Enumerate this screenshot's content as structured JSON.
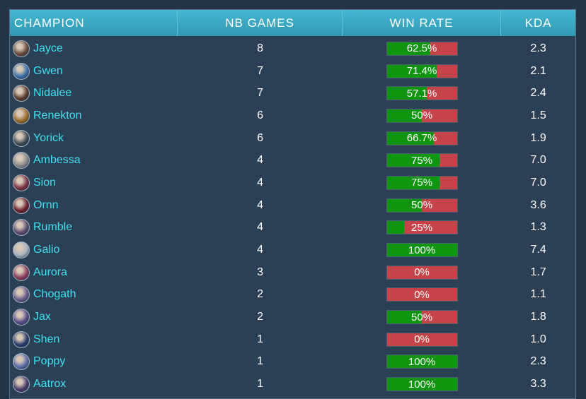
{
  "header": {
    "champion": "CHAMPION",
    "games": "NB GAMES",
    "winrate": "WIN RATE",
    "kda": "KDA"
  },
  "colors": {
    "header_bg": "#3aa9c4",
    "panel_bg": "#2b3f55",
    "name_color": "#3fe0f0",
    "win_color": "#0f950f",
    "loss_color": "#c4444a"
  },
  "rows": [
    {
      "name": "Jayce",
      "games": "8",
      "winrate_label": "62.5%",
      "winrate": 62.5,
      "kda": "2.3",
      "icon": "jayce-portrait-icon",
      "icon_color": "#6a4a3c"
    },
    {
      "name": "Gwen",
      "games": "7",
      "winrate_label": "71.4%",
      "winrate": 71.4,
      "kda": "2.1",
      "icon": "gwen-portrait-icon",
      "icon_color": "#3b6fa8"
    },
    {
      "name": "Nidalee",
      "games": "7",
      "winrate_label": "57.1%",
      "winrate": 57.1,
      "kda": "2.4",
      "icon": "nidalee-portrait-icon",
      "icon_color": "#5b3a2c"
    },
    {
      "name": "Renekton",
      "games": "6",
      "winrate_label": "50%",
      "winrate": 50,
      "kda": "1.5",
      "icon": "renekton-portrait-icon",
      "icon_color": "#9a6a2a"
    },
    {
      "name": "Yorick",
      "games": "6",
      "winrate_label": "66.7%",
      "winrate": 66.7,
      "kda": "1.9",
      "icon": "yorick-portrait-icon",
      "icon_color": "#3e4a55"
    },
    {
      "name": "Ambessa",
      "games": "4",
      "winrate_label": "75%",
      "winrate": 75,
      "kda": "7.0",
      "icon": "ambessa-portrait-icon",
      "icon_color": "#8a8a8a"
    },
    {
      "name": "Sion",
      "games": "4",
      "winrate_label": "75%",
      "winrate": 75,
      "kda": "7.0",
      "icon": "sion-portrait-icon",
      "icon_color": "#7a3040"
    },
    {
      "name": "Ornn",
      "games": "4",
      "winrate_label": "50%",
      "winrate": 50,
      "kda": "3.6",
      "icon": "ornn-portrait-icon",
      "icon_color": "#6a1f2a"
    },
    {
      "name": "Rumble",
      "games": "4",
      "winrate_label": "25%",
      "winrate": 25,
      "kda": "1.3",
      "icon": "rumble-portrait-icon",
      "icon_color": "#5a4a6a"
    },
    {
      "name": "Galio",
      "games": "4",
      "winrate_label": "100%",
      "winrate": 100,
      "kda": "7.4",
      "icon": "galio-portrait-icon",
      "icon_color": "#a7b2be"
    },
    {
      "name": "Aurora",
      "games": "3",
      "winrate_label": "0%",
      "winrate": 0,
      "kda": "1.7",
      "icon": "aurora-portrait-icon",
      "icon_color": "#8a3a5a"
    },
    {
      "name": "Chogath",
      "games": "2",
      "winrate_label": "0%",
      "winrate": 0,
      "kda": "1.1",
      "icon": "chogath-portrait-icon",
      "icon_color": "#6a5a8a"
    },
    {
      "name": "Jax",
      "games": "2",
      "winrate_label": "50%",
      "winrate": 50,
      "kda": "1.8",
      "icon": "jax-portrait-icon",
      "icon_color": "#5a4a8a"
    },
    {
      "name": "Shen",
      "games": "1",
      "winrate_label": "0%",
      "winrate": 0,
      "kda": "1.0",
      "icon": "shen-portrait-icon",
      "icon_color": "#2a3a6a"
    },
    {
      "name": "Poppy",
      "games": "1",
      "winrate_label": "100%",
      "winrate": 100,
      "kda": "2.3",
      "icon": "poppy-portrait-icon",
      "icon_color": "#5a6aa8"
    },
    {
      "name": "Aatrox",
      "games": "1",
      "winrate_label": "100%",
      "winrate": 100,
      "kda": "3.3",
      "icon": "aatrox-portrait-icon",
      "icon_color": "#4a3a6a"
    }
  ]
}
